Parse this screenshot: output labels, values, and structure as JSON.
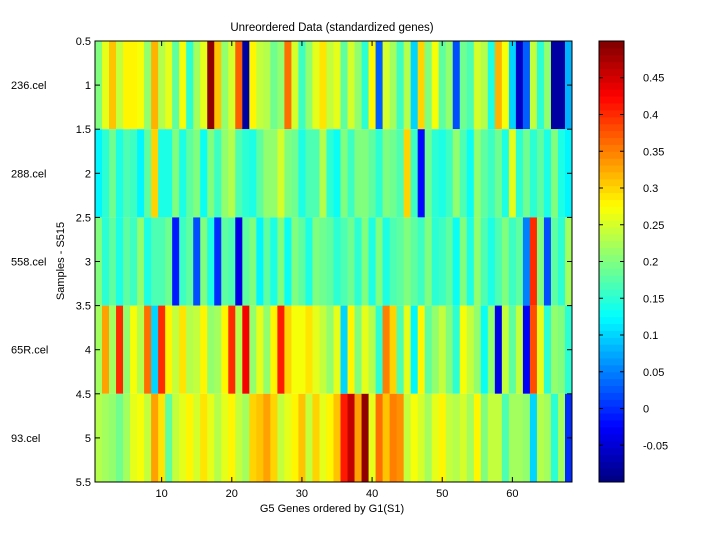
{
  "chart_data": {
    "type": "heatmap",
    "title": "Unreordered Data (standardized genes)",
    "xlabel": "G5 Genes ordered by G1(S1)",
    "ylabel": "Samples - S515",
    "row_labels": [
      "236.cel",
      "288.cel",
      "558.cel",
      "65R.cel",
      "93.cel"
    ],
    "x_ticks": [
      10,
      20,
      30,
      40,
      50,
      60
    ],
    "y_ticks": [
      "0.5",
      "1",
      "1.5",
      "2",
      "2.5",
      "3",
      "3.5",
      "4",
      "4.5",
      "5",
      "5.5"
    ],
    "xlim": [
      0.5,
      68.5
    ],
    "ylim": [
      0.5,
      5.5
    ],
    "colormap": "jet",
    "color_limits": [
      -0.1,
      0.5
    ],
    "colorbar_ticks": [
      "-0.05",
      "0",
      "0.05",
      "0.1",
      "0.15",
      "0.2",
      "0.25",
      "0.3",
      "0.35",
      "0.4",
      "0.45"
    ],
    "colorbar_tick_values": [
      -0.05,
      0,
      0.05,
      0.1,
      0.15,
      0.2,
      0.25,
      0.3,
      0.35,
      0.4,
      0.45
    ],
    "values": [
      [
        0.2,
        0.26,
        0.31,
        0.24,
        0.28,
        0.28,
        0.27,
        0.21,
        0.32,
        0.23,
        0.26,
        0.18,
        0.27,
        0.15,
        0.22,
        0.26,
        0.49,
        0.31,
        0.21,
        0.25,
        0.37,
        -0.08,
        0.28,
        0.24,
        0.23,
        0.19,
        0.21,
        0.36,
        0.25,
        0.16,
        0.21,
        0.26,
        0.29,
        0.24,
        0.26,
        0.18,
        0.25,
        0.21,
        0.15,
        0.28,
        0.03,
        0.25,
        0.22,
        0.16,
        0.23,
        0.1,
        0.3,
        0.2,
        0.27,
        0.18,
        0.21,
        0.02,
        0.19,
        0.17,
        0.25,
        0.23,
        0.14,
        0.32,
        0.27,
        0.1,
        -0.06,
        0.03,
        0.24,
        0.15,
        0.21,
        -0.08,
        -0.08,
        0.08
      ],
      [
        0.12,
        0.15,
        0.19,
        0.14,
        0.17,
        0.16,
        0.12,
        0.18,
        0.3,
        0.14,
        0.14,
        0.2,
        0.14,
        0.18,
        0.2,
        0.13,
        0.2,
        0.16,
        0.21,
        0.23,
        0.17,
        0.15,
        0.14,
        0.18,
        0.21,
        0.21,
        0.25,
        0.2,
        0.19,
        0.14,
        0.17,
        0.17,
        0.23,
        0.15,
        0.13,
        0.2,
        0.16,
        0.2,
        0.2,
        0.18,
        0.15,
        0.2,
        0.19,
        0.17,
        0.3,
        0.16,
        -0.02,
        0.19,
        0.15,
        0.14,
        0.16,
        0.21,
        0.17,
        0.13,
        0.21,
        0.18,
        0.16,
        0.19,
        0.14,
        0.26,
        0.15,
        0.19,
        0.15,
        0.18,
        0.14,
        0.2,
        0.14,
        0.12
      ],
      [
        0.2,
        0.15,
        0.18,
        0.14,
        0.18,
        0.16,
        0.21,
        0.14,
        0.17,
        0.17,
        0.19,
        -0.01,
        0.16,
        0.18,
        0.02,
        0.2,
        0.14,
        0.0,
        0.18,
        0.17,
        -0.04,
        0.18,
        0.2,
        0.12,
        0.18,
        0.14,
        0.2,
        0.13,
        0.2,
        0.18,
        0.14,
        0.2,
        0.19,
        0.18,
        0.15,
        0.17,
        0.19,
        0.15,
        0.2,
        0.14,
        0.2,
        0.14,
        0.17,
        0.18,
        0.2,
        0.18,
        0.16,
        0.2,
        0.15,
        0.16,
        0.18,
        0.13,
        0.2,
        0.14,
        0.21,
        0.17,
        0.14,
        0.17,
        0.2,
        0.16,
        0.18,
        0.05,
        0.4,
        0.2,
        0.02,
        0.18,
        0.15,
        0.22
      ],
      [
        0.22,
        0.33,
        0.22,
        0.4,
        0.21,
        0.27,
        0.23,
        0.36,
        0.1,
        0.4,
        0.28,
        0.24,
        0.29,
        0.23,
        0.24,
        0.28,
        0.21,
        0.22,
        0.28,
        0.4,
        0.23,
        0.43,
        0.21,
        0.26,
        0.21,
        0.28,
        0.41,
        0.3,
        0.27,
        0.27,
        0.29,
        0.26,
        0.24,
        0.21,
        0.26,
        0.1,
        0.28,
        0.2,
        0.26,
        0.23,
        0.15,
        0.35,
        0.3,
        0.17,
        0.26,
        0.12,
        0.28,
        0.18,
        0.21,
        0.24,
        0.2,
        0.15,
        0.27,
        0.24,
        0.21,
        0.13,
        0.21,
        -0.04,
        0.24,
        0.18,
        0.24,
        -0.03,
        0.38,
        0.26,
        0.15,
        0.21,
        0.2,
        0.15
      ],
      [
        0.23,
        0.22,
        0.21,
        0.19,
        0.22,
        0.26,
        0.27,
        0.24,
        0.33,
        0.29,
        0.18,
        0.24,
        0.26,
        0.28,
        0.25,
        0.29,
        0.26,
        0.23,
        0.26,
        0.28,
        0.24,
        0.22,
        0.3,
        0.31,
        0.33,
        0.3,
        0.24,
        0.26,
        0.28,
        0.31,
        0.24,
        0.3,
        0.26,
        0.28,
        0.31,
        0.41,
        0.46,
        0.33,
        0.49,
        0.26,
        0.36,
        0.31,
        0.35,
        0.34,
        0.24,
        0.27,
        0.25,
        0.22,
        0.26,
        0.28,
        0.24,
        0.23,
        0.25,
        0.22,
        0.28,
        0.2,
        0.24,
        0.24,
        0.17,
        0.22,
        0.22,
        0.21,
        0.1,
        0.23,
        0.22,
        0.15,
        0.22,
        0.0
      ]
    ]
  }
}
